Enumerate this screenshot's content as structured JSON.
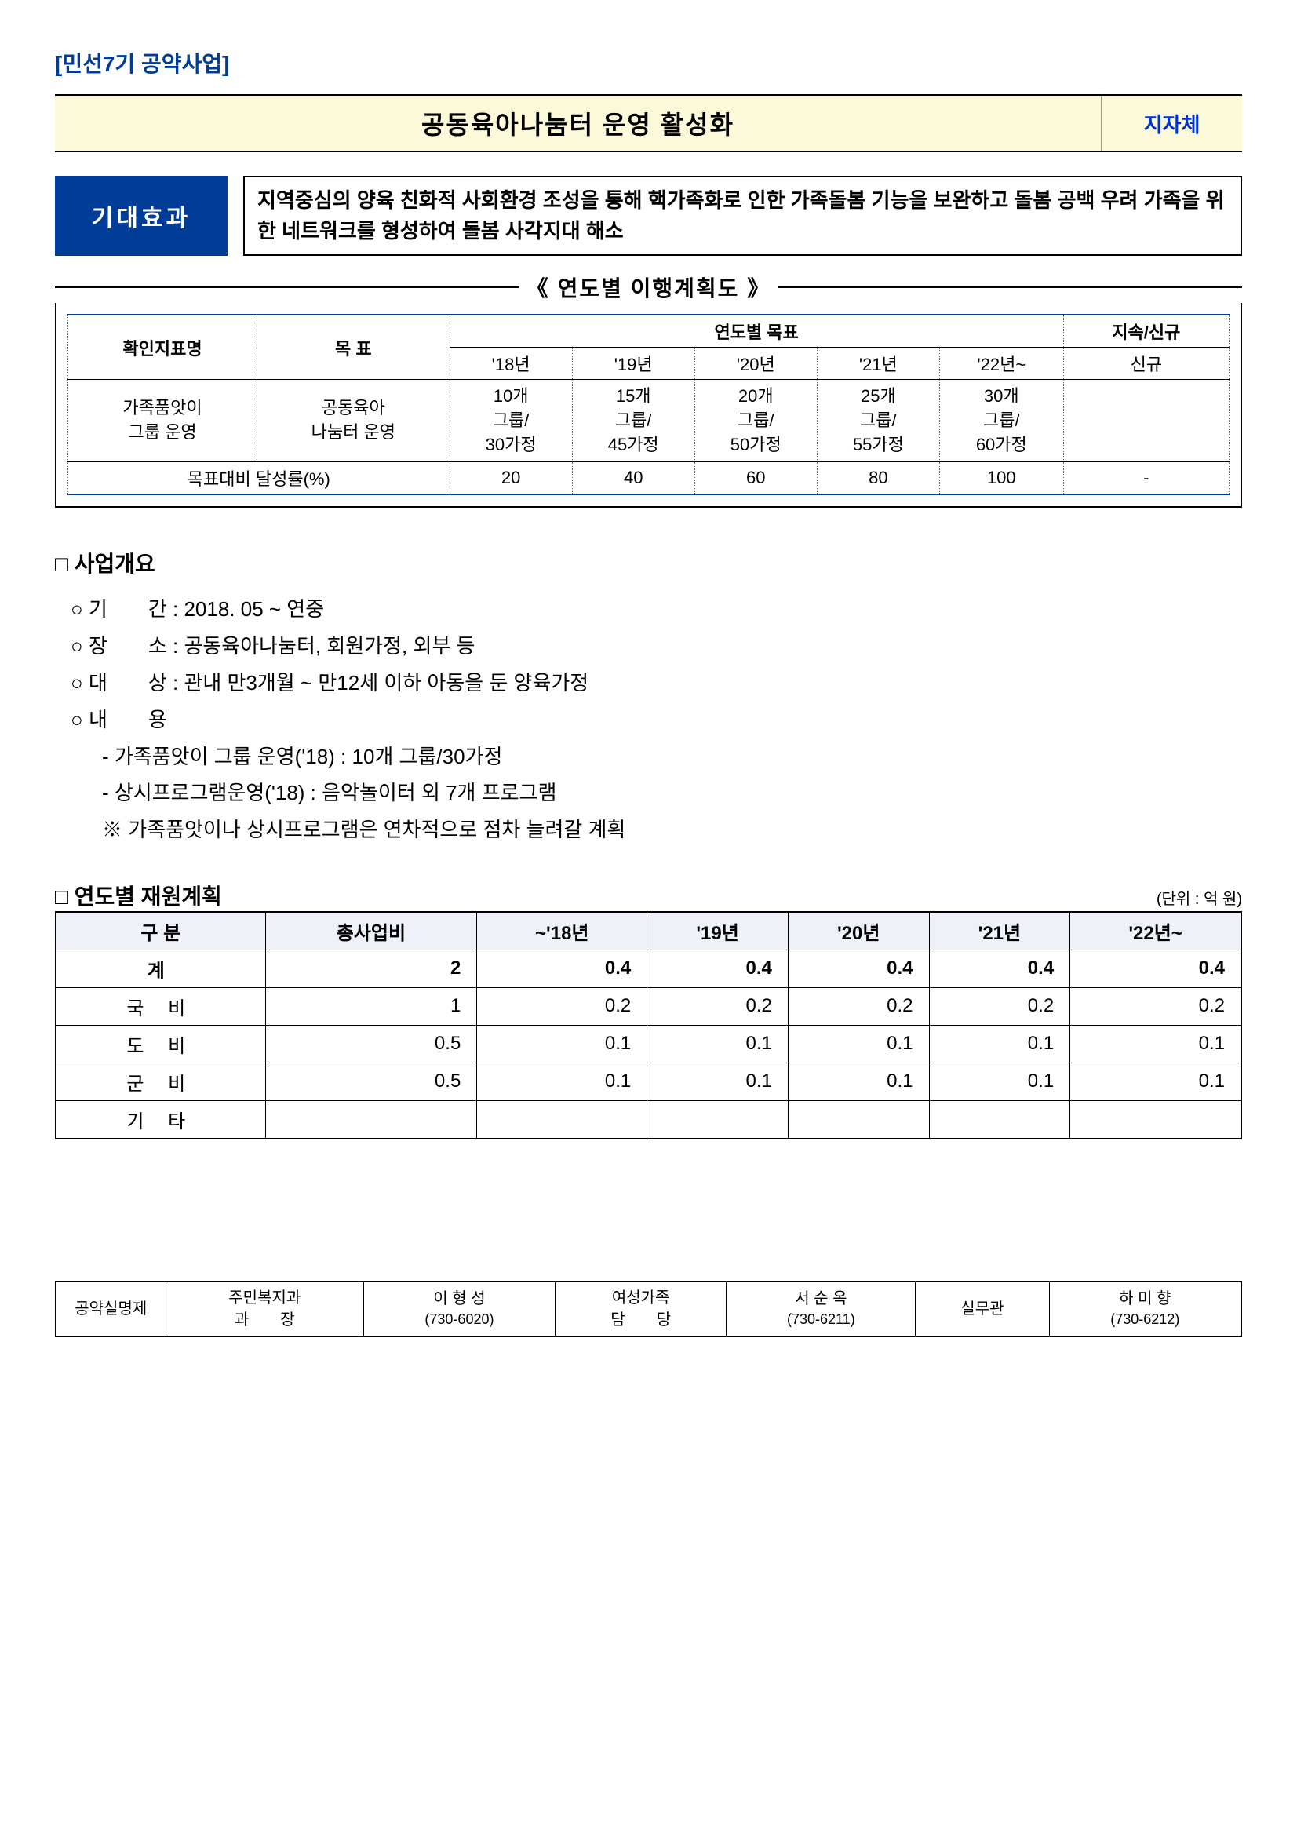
{
  "header_tag": "[민선7기 공약사업]",
  "title": "공동육아나눔터 운영 활성화",
  "title_side": "지자체",
  "effect_label": "기대효과",
  "effect_body": "지역중심의 양육 친화적 사회환경 조성을 통해 핵가족화로 인한 가족돌봄 기능을 보완하고 돌봄 공백 우려 가족을 위한 네트워크를 형성하여 돌봄 사각지대 해소",
  "plan_title": "《 연도별 이행계획도 》",
  "plan_table": {
    "headers": {
      "indicator": "확인지표명",
      "goal": "목  표",
      "year_goal": "연도별 목표",
      "cont_new": "지속/신규",
      "y18": "'18년",
      "y19": "'19년",
      "y20": "'20년",
      "y21": "'21년",
      "y22": "'22년~",
      "new": "신규"
    },
    "row1": {
      "indicator": "가족품앗이\n그룹 운영",
      "goal": "공동육아\n나눔터 운영",
      "y18": "10개\n그룹/\n30가정",
      "y19": "15개\n그룹/\n45가정",
      "y20": "20개\n그룹/\n50가정",
      "y21": "25개\n그룹/\n55가정",
      "y22": "30개\n그룹/\n60가정",
      "new": ""
    },
    "row2": {
      "label": "목표대비 달성률(%)",
      "y18": "20",
      "y19": "40",
      "y20": "60",
      "y21": "80",
      "y22": "100",
      "new": "-"
    }
  },
  "overview": {
    "title": "사업개요",
    "items": [
      {
        "type": "main",
        "text": "기　　간 : 2018. 05 ~ 연중"
      },
      {
        "type": "main",
        "text": "장　　소 : 공동육아나눔터, 회원가정, 외부 등"
      },
      {
        "type": "main",
        "text": "대　　상 : 관내 만3개월 ~ 만12세 이하 아동을 둔 양육가정"
      },
      {
        "type": "main",
        "text": "내　　용"
      },
      {
        "type": "sub",
        "text": "가족품앗이 그룹 운영('18) : 10개 그룹/30가정"
      },
      {
        "type": "sub",
        "text": "상시프로그램운영('18) : 음악놀이터 외 7개 프로그램"
      },
      {
        "type": "note",
        "text": "가족품앗이나 상시프로그램은 연차적으로 점차 늘려갈 계획"
      }
    ]
  },
  "funding": {
    "title": "연도별 재원계획",
    "unit": "(단위 : 억 원)",
    "headers": [
      "구  분",
      "총사업비",
      "~'18년",
      "'19년",
      "'20년",
      "'21년",
      "'22년~"
    ],
    "rows": [
      {
        "label": "계",
        "vals": [
          "2",
          "0.4",
          "0.4",
          "0.4",
          "0.4",
          "0.4"
        ],
        "bold": true
      },
      {
        "label": "국  비",
        "vals": [
          "1",
          "0.2",
          "0.2",
          "0.2",
          "0.2",
          "0.2"
        ]
      },
      {
        "label": "도  비",
        "vals": [
          "0.5",
          "0.1",
          "0.1",
          "0.1",
          "0.1",
          "0.1"
        ]
      },
      {
        "label": "군  비",
        "vals": [
          "0.5",
          "0.1",
          "0.1",
          "0.1",
          "0.1",
          "0.1"
        ]
      },
      {
        "label": "기  타",
        "vals": [
          "",
          "",
          "",
          "",
          "",
          ""
        ]
      }
    ]
  },
  "contact": {
    "label": "공약실명제",
    "c1_role": "주민복지과\n과　　장",
    "c1_name": "이 형 성",
    "c1_phone": "(730-6020)",
    "c2_role": "여성가족\n담　　당",
    "c2_name": "서 순 옥",
    "c2_phone": "(730-6211)",
    "c3_role": "실무관",
    "c3_name": "하 미 향",
    "c3_phone": "(730-6212)"
  }
}
